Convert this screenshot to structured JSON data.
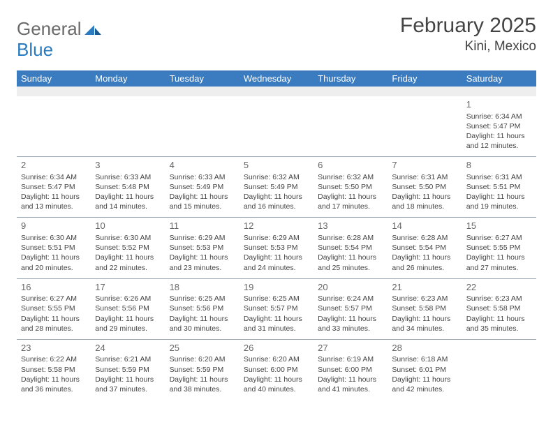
{
  "logo": {
    "part1": "General",
    "part2": "Blue"
  },
  "title": "February 2025",
  "location": "Kini, Mexico",
  "colors": {
    "header_bg": "#3b7bbf",
    "header_text": "#ffffff",
    "spacer_bg": "#eeeeee",
    "border": "#9aa7b3",
    "text": "#444444",
    "logo_grey": "#6b6b6b",
    "logo_blue": "#2a7bbf"
  },
  "day_names": [
    "Sunday",
    "Monday",
    "Tuesday",
    "Wednesday",
    "Thursday",
    "Friday",
    "Saturday"
  ],
  "weeks": [
    [
      null,
      null,
      null,
      null,
      null,
      null,
      {
        "n": "1",
        "sr": "Sunrise: 6:34 AM",
        "ss": "Sunset: 5:47 PM",
        "dl": "Daylight: 11 hours and 12 minutes."
      }
    ],
    [
      {
        "n": "2",
        "sr": "Sunrise: 6:34 AM",
        "ss": "Sunset: 5:47 PM",
        "dl": "Daylight: 11 hours and 13 minutes."
      },
      {
        "n": "3",
        "sr": "Sunrise: 6:33 AM",
        "ss": "Sunset: 5:48 PM",
        "dl": "Daylight: 11 hours and 14 minutes."
      },
      {
        "n": "4",
        "sr": "Sunrise: 6:33 AM",
        "ss": "Sunset: 5:49 PM",
        "dl": "Daylight: 11 hours and 15 minutes."
      },
      {
        "n": "5",
        "sr": "Sunrise: 6:32 AM",
        "ss": "Sunset: 5:49 PM",
        "dl": "Daylight: 11 hours and 16 minutes."
      },
      {
        "n": "6",
        "sr": "Sunrise: 6:32 AM",
        "ss": "Sunset: 5:50 PM",
        "dl": "Daylight: 11 hours and 17 minutes."
      },
      {
        "n": "7",
        "sr": "Sunrise: 6:31 AM",
        "ss": "Sunset: 5:50 PM",
        "dl": "Daylight: 11 hours and 18 minutes."
      },
      {
        "n": "8",
        "sr": "Sunrise: 6:31 AM",
        "ss": "Sunset: 5:51 PM",
        "dl": "Daylight: 11 hours and 19 minutes."
      }
    ],
    [
      {
        "n": "9",
        "sr": "Sunrise: 6:30 AM",
        "ss": "Sunset: 5:51 PM",
        "dl": "Daylight: 11 hours and 20 minutes."
      },
      {
        "n": "10",
        "sr": "Sunrise: 6:30 AM",
        "ss": "Sunset: 5:52 PM",
        "dl": "Daylight: 11 hours and 22 minutes."
      },
      {
        "n": "11",
        "sr": "Sunrise: 6:29 AM",
        "ss": "Sunset: 5:53 PM",
        "dl": "Daylight: 11 hours and 23 minutes."
      },
      {
        "n": "12",
        "sr": "Sunrise: 6:29 AM",
        "ss": "Sunset: 5:53 PM",
        "dl": "Daylight: 11 hours and 24 minutes."
      },
      {
        "n": "13",
        "sr": "Sunrise: 6:28 AM",
        "ss": "Sunset: 5:54 PM",
        "dl": "Daylight: 11 hours and 25 minutes."
      },
      {
        "n": "14",
        "sr": "Sunrise: 6:28 AM",
        "ss": "Sunset: 5:54 PM",
        "dl": "Daylight: 11 hours and 26 minutes."
      },
      {
        "n": "15",
        "sr": "Sunrise: 6:27 AM",
        "ss": "Sunset: 5:55 PM",
        "dl": "Daylight: 11 hours and 27 minutes."
      }
    ],
    [
      {
        "n": "16",
        "sr": "Sunrise: 6:27 AM",
        "ss": "Sunset: 5:55 PM",
        "dl": "Daylight: 11 hours and 28 minutes."
      },
      {
        "n": "17",
        "sr": "Sunrise: 6:26 AM",
        "ss": "Sunset: 5:56 PM",
        "dl": "Daylight: 11 hours and 29 minutes."
      },
      {
        "n": "18",
        "sr": "Sunrise: 6:25 AM",
        "ss": "Sunset: 5:56 PM",
        "dl": "Daylight: 11 hours and 30 minutes."
      },
      {
        "n": "19",
        "sr": "Sunrise: 6:25 AM",
        "ss": "Sunset: 5:57 PM",
        "dl": "Daylight: 11 hours and 31 minutes."
      },
      {
        "n": "20",
        "sr": "Sunrise: 6:24 AM",
        "ss": "Sunset: 5:57 PM",
        "dl": "Daylight: 11 hours and 33 minutes."
      },
      {
        "n": "21",
        "sr": "Sunrise: 6:23 AM",
        "ss": "Sunset: 5:58 PM",
        "dl": "Daylight: 11 hours and 34 minutes."
      },
      {
        "n": "22",
        "sr": "Sunrise: 6:23 AM",
        "ss": "Sunset: 5:58 PM",
        "dl": "Daylight: 11 hours and 35 minutes."
      }
    ],
    [
      {
        "n": "23",
        "sr": "Sunrise: 6:22 AM",
        "ss": "Sunset: 5:58 PM",
        "dl": "Daylight: 11 hours and 36 minutes."
      },
      {
        "n": "24",
        "sr": "Sunrise: 6:21 AM",
        "ss": "Sunset: 5:59 PM",
        "dl": "Daylight: 11 hours and 37 minutes."
      },
      {
        "n": "25",
        "sr": "Sunrise: 6:20 AM",
        "ss": "Sunset: 5:59 PM",
        "dl": "Daylight: 11 hours and 38 minutes."
      },
      {
        "n": "26",
        "sr": "Sunrise: 6:20 AM",
        "ss": "Sunset: 6:00 PM",
        "dl": "Daylight: 11 hours and 40 minutes."
      },
      {
        "n": "27",
        "sr": "Sunrise: 6:19 AM",
        "ss": "Sunset: 6:00 PM",
        "dl": "Daylight: 11 hours and 41 minutes."
      },
      {
        "n": "28",
        "sr": "Sunrise: 6:18 AM",
        "ss": "Sunset: 6:01 PM",
        "dl": "Daylight: 11 hours and 42 minutes."
      },
      null
    ]
  ]
}
